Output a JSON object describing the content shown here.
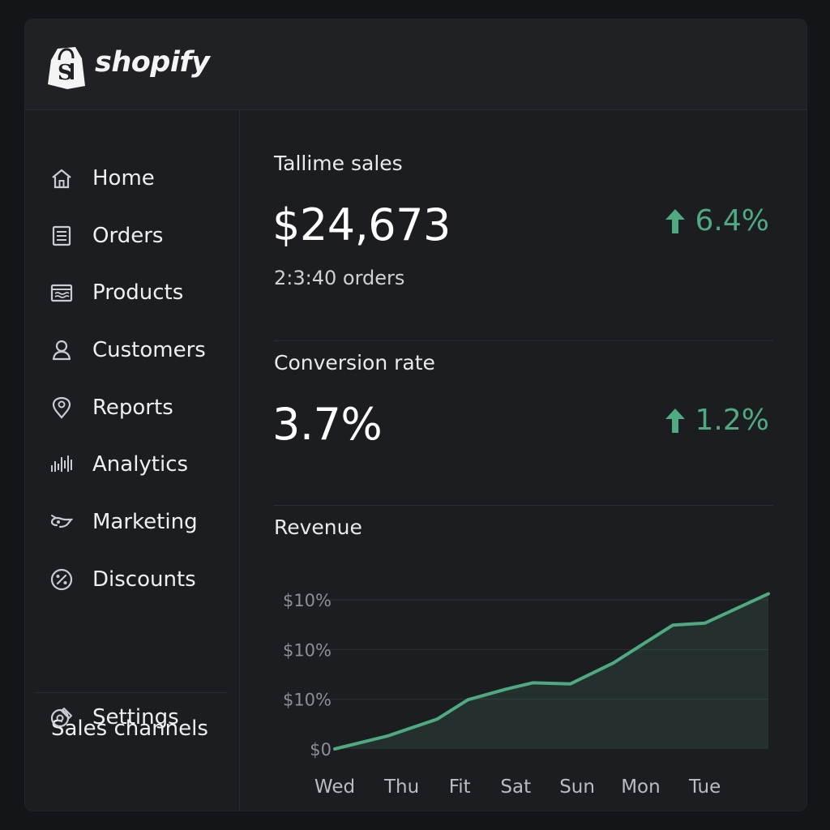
{
  "brand": {
    "name": "shopify",
    "accent": "#4fa981"
  },
  "sidebar": {
    "items": [
      {
        "label": "Home",
        "icon": "home-icon"
      },
      {
        "label": "Orders",
        "icon": "orders-icon"
      },
      {
        "label": "Products",
        "icon": "products-icon"
      },
      {
        "label": "Customers",
        "icon": "customers-icon"
      },
      {
        "label": "Reports",
        "icon": "reports-icon"
      },
      {
        "label": "Analytics",
        "icon": "analytics-icon"
      },
      {
        "label": "Marketing",
        "icon": "marketing-icon"
      },
      {
        "label": "Discounts",
        "icon": "discounts-icon"
      }
    ],
    "section_label": "Sales channels",
    "settings": {
      "label": "Settings",
      "icon": "settings-icon"
    }
  },
  "sales": {
    "title": "Tallime sales",
    "value": "$24,673",
    "orders": "2:3:40 orders",
    "delta": "6.4%",
    "delta_direction": "up"
  },
  "conversion": {
    "title": "Conversion rate",
    "value": "3.7%",
    "delta": "1.2%",
    "delta_direction": "up"
  },
  "revenue": {
    "title": "Revenue"
  },
  "chart_data": {
    "type": "area",
    "title": "Revenue",
    "x": [
      "Wed",
      "Thu",
      "Fit",
      "Sat",
      "Sun",
      "Mon",
      "Tue"
    ],
    "y_tick_labels": [
      "$0",
      "$10%",
      "$10%",
      "$10%"
    ],
    "y_ticks": [
      0,
      1,
      2,
      3
    ],
    "ylim": [
      0,
      3
    ],
    "values": [
      0.0,
      0.26,
      1.02,
      1.31,
      1.73,
      2.49,
      3.12
    ],
    "points": [
      {
        "x": 0.0,
        "y": 0.0
      },
      {
        "x": 0.77,
        "y": 0.26
      },
      {
        "x": 1.5,
        "y": 0.6
      },
      {
        "x": 1.95,
        "y": 0.99
      },
      {
        "x": 2.5,
        "y": 1.2
      },
      {
        "x": 2.9,
        "y": 1.33
      },
      {
        "x": 3.45,
        "y": 1.31
      },
      {
        "x": 4.08,
        "y": 1.73
      },
      {
        "x": 4.95,
        "y": 2.49
      },
      {
        "x": 5.42,
        "y": 2.53
      },
      {
        "x": 6.35,
        "y": 3.12
      }
    ],
    "color": "#4fa981",
    "grid": true,
    "legend": "none"
  }
}
